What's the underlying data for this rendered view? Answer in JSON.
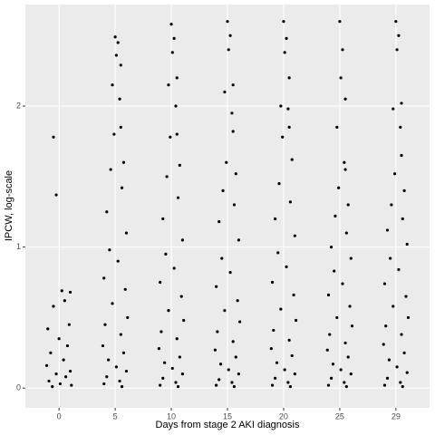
{
  "chart_data": {
    "type": "scatter",
    "xlabel": "Days from stage 2 AKI diagnosis",
    "ylabel": "IPCW, log-scale",
    "xlim": [
      -0.6,
      6.6
    ],
    "ylim": [
      -0.14,
      2.72
    ],
    "xticks": [
      {
        "value": 0,
        "label": "0"
      },
      {
        "value": 1,
        "label": "5"
      },
      {
        "value": 2,
        "label": "10"
      },
      {
        "value": 3,
        "label": "15"
      },
      {
        "value": 4,
        "label": "20"
      },
      {
        "value": 5,
        "label": "25"
      },
      {
        "value": 6,
        "label": "29"
      }
    ],
    "yticks": [
      0,
      1,
      2
    ],
    "grid": true,
    "color": "#000000",
    "x": [
      -0.1,
      -0.05,
      0.05,
      0.2,
      0.1,
      -0.1,
      0.18,
      -0.2,
      0.0,
      0.15,
      -0.15,
      0.08,
      -0.22,
      0.2,
      -0.05,
      0.12,
      -0.18,
      0.02,
      0.22,
      -0.12,
      1.0,
      1.05,
      1.02,
      1.1,
      0.95,
      1.08,
      1.1,
      0.98,
      1.15,
      0.92,
      1.12,
      0.85,
      1.2,
      0.9,
      1.05,
      0.8,
      1.18,
      0.95,
      1.22,
      0.82,
      1.1,
      0.78,
      1.15,
      0.88,
      1.02,
      1.2,
      0.85,
      1.08,
      0.8,
      1.12,
      2.0,
      2.05,
      2.02,
      2.1,
      1.95,
      2.08,
      2.1,
      1.98,
      2.15,
      1.92,
      2.12,
      1.85,
      2.2,
      1.9,
      2.05,
      1.8,
      2.18,
      1.95,
      2.22,
      1.82,
      2.1,
      1.78,
      2.15,
      1.88,
      2.02,
      2.2,
      1.85,
      2.08,
      1.8,
      2.12,
      3.0,
      3.05,
      3.02,
      3.1,
      2.95,
      3.08,
      3.1,
      2.98,
      3.15,
      2.92,
      3.12,
      2.85,
      3.2,
      2.9,
      3.05,
      2.8,
      3.18,
      2.95,
      3.22,
      2.82,
      3.1,
      2.78,
      3.15,
      2.88,
      3.02,
      3.2,
      2.85,
      3.08,
      2.8,
      3.12,
      4.0,
      4.05,
      4.02,
      4.1,
      3.95,
      4.08,
      4.1,
      3.98,
      4.15,
      3.92,
      4.12,
      3.85,
      4.2,
      3.9,
      4.05,
      3.8,
      4.18,
      3.95,
      4.22,
      3.82,
      4.1,
      3.78,
      4.15,
      3.88,
      4.02,
      4.2,
      3.85,
      4.08,
      3.8,
      4.12,
      5.0,
      5.05,
      5.02,
      5.1,
      4.95,
      5.08,
      5.1,
      4.98,
      5.15,
      4.92,
      5.12,
      4.85,
      5.2,
      4.9,
      5.05,
      4.8,
      5.18,
      4.95,
      5.22,
      4.82,
      5.1,
      4.78,
      5.15,
      4.88,
      5.02,
      5.2,
      4.85,
      5.08,
      4.8,
      5.12,
      6.0,
      6.05,
      6.02,
      6.1,
      5.95,
      6.08,
      6.1,
      5.98,
      6.15,
      5.92,
      6.12,
      5.85,
      6.2,
      5.9,
      6.05,
      5.8,
      6.18,
      5.95,
      6.22,
      5.82,
      6.1,
      5.78,
      6.15,
      5.88,
      6.02,
      6.2,
      5.85,
      6.08,
      5.8,
      6.12
    ],
    "y": [
      1.78,
      1.37,
      0.69,
      0.68,
      0.62,
      0.58,
      0.45,
      0.42,
      0.35,
      0.3,
      0.25,
      0.2,
      0.16,
      0.12,
      0.1,
      0.08,
      0.05,
      0.03,
      0.02,
      0.01,
      2.49,
      2.45,
      2.36,
      2.29,
      2.15,
      2.05,
      1.85,
      1.8,
      1.6,
      1.55,
      1.42,
      1.25,
      1.1,
      0.98,
      0.9,
      0.78,
      0.7,
      0.6,
      0.5,
      0.45,
      0.38,
      0.3,
      0.25,
      0.2,
      0.15,
      0.12,
      0.08,
      0.05,
      0.03,
      0.01,
      2.58,
      2.48,
      2.38,
      2.2,
      2.15,
      2.0,
      1.8,
      1.78,
      1.58,
      1.5,
      1.35,
      1.2,
      1.05,
      0.95,
      0.85,
      0.75,
      0.65,
      0.55,
      0.48,
      0.4,
      0.35,
      0.28,
      0.22,
      0.18,
      0.14,
      0.1,
      0.07,
      0.04,
      0.02,
      0.01,
      2.6,
      2.5,
      2.4,
      2.15,
      2.1,
      1.95,
      1.82,
      1.6,
      1.52,
      1.4,
      1.3,
      1.18,
      1.05,
      0.92,
      0.82,
      0.72,
      0.62,
      0.55,
      0.47,
      0.4,
      0.33,
      0.27,
      0.22,
      0.17,
      0.13,
      0.1,
      0.06,
      0.04,
      0.02,
      0.01,
      2.6,
      2.48,
      2.38,
      2.2,
      2.0,
      1.98,
      1.85,
      1.78,
      1.62,
      1.45,
      1.32,
      1.2,
      1.08,
      0.96,
      0.86,
      0.75,
      0.66,
      0.56,
      0.48,
      0.41,
      0.34,
      0.28,
      0.23,
      0.18,
      0.13,
      0.1,
      0.07,
      0.04,
      0.02,
      0.01,
      2.6,
      2.4,
      2.2,
      2.05,
      1.85,
      1.6,
      1.55,
      1.42,
      1.3,
      1.22,
      1.1,
      1.0,
      0.92,
      0.83,
      0.74,
      0.66,
      0.58,
      0.5,
      0.44,
      0.38,
      0.32,
      0.27,
      0.22,
      0.17,
      0.13,
      0.1,
      0.07,
      0.04,
      0.02,
      0.01,
      2.6,
      2.5,
      2.4,
      2.02,
      1.98,
      1.85,
      1.65,
      1.52,
      1.4,
      1.3,
      1.2,
      1.12,
      1.02,
      0.92,
      0.84,
      0.74,
      0.65,
      0.58,
      0.5,
      0.44,
      0.38,
      0.31,
      0.25,
      0.2,
      0.15,
      0.11,
      0.07,
      0.04,
      0.02,
      0.01
    ]
  }
}
